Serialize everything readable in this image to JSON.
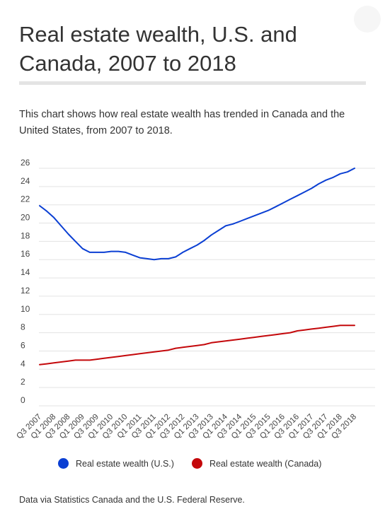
{
  "header": {
    "title": "Real estate wealth, U.S. and Canada, 2007 to 2018",
    "description": "This chart shows how real estate wealth has trended in Canada and the United States, from 2007 to 2018."
  },
  "footer": {
    "source": "Data via Statistics Canada and the U.S. Federal Reserve."
  },
  "chart_data": {
    "type": "line",
    "title": "",
    "xlabel": "",
    "ylabel": "",
    "ylim": [
      0,
      26
    ],
    "yticks": [
      0,
      2,
      4,
      6,
      8,
      10,
      12,
      14,
      16,
      18,
      20,
      22,
      24,
      26
    ],
    "grid": true,
    "legend_position": "bottom",
    "x": [
      "Q3 2007",
      "Q4 2007",
      "Q1 2008",
      "Q2 2008",
      "Q3 2008",
      "Q4 2008",
      "Q1 2009",
      "Q2 2009",
      "Q3 2009",
      "Q4 2009",
      "Q1 2010",
      "Q2 2010",
      "Q3 2010",
      "Q4 2010",
      "Q1 2011",
      "Q2 2011",
      "Q3 2011",
      "Q4 2011",
      "Q1 2012",
      "Q2 2012",
      "Q3 2012",
      "Q4 2012",
      "Q1 2013",
      "Q2 2013",
      "Q3 2013",
      "Q4 2013",
      "Q1 2014",
      "Q2 2014",
      "Q3 2014",
      "Q4 2014",
      "Q1 2015",
      "Q2 2015",
      "Q3 2015",
      "Q4 2015",
      "Q1 2016",
      "Q2 2016",
      "Q3 2016",
      "Q4 2016",
      "Q1 2017",
      "Q2 2017",
      "Q3 2017",
      "Q4 2017",
      "Q1 2018",
      "Q2 2018",
      "Q3 2018"
    ],
    "tick_labels": [
      "Q3 2007",
      "Q1 2008",
      "Q3 2008",
      "Q1 2009",
      "Q3 2009",
      "Q1 2010",
      "Q3 2010",
      "Q1 2011",
      "Q3 2011",
      "Q1 2012",
      "Q3 2012",
      "Q1 2013",
      "Q3 2013",
      "Q1 2014",
      "Q3 2014",
      "Q1 2015",
      "Q3 2015",
      "Q1 2016",
      "Q3 2016",
      "Q1 2017",
      "Q3 2017",
      "Q1 2018",
      "Q3 2018"
    ],
    "series": [
      {
        "name": "Real estate wealth (U.S.)",
        "color": "#0b3fd3",
        "values": [
          21.9,
          21.3,
          20.6,
          19.7,
          18.8,
          18.0,
          17.2,
          16.8,
          16.8,
          16.8,
          16.9,
          16.9,
          16.8,
          16.5,
          16.2,
          16.1,
          16.0,
          16.1,
          16.1,
          16.3,
          16.8,
          17.2,
          17.6,
          18.1,
          18.7,
          19.2,
          19.7,
          19.9,
          20.2,
          20.5,
          20.8,
          21.1,
          21.4,
          21.8,
          22.2,
          22.6,
          23.0,
          23.4,
          23.8,
          24.3,
          24.7,
          25.0,
          25.4,
          25.6,
          26.0
        ]
      },
      {
        "name": "Real estate wealth (Canada)",
        "color": "#c4080b",
        "values": [
          4.5,
          4.6,
          4.7,
          4.8,
          4.9,
          5.0,
          5.0,
          5.0,
          5.1,
          5.2,
          5.3,
          5.4,
          5.5,
          5.6,
          5.7,
          5.8,
          5.9,
          6.0,
          6.1,
          6.3,
          6.4,
          6.5,
          6.6,
          6.7,
          6.9,
          7.0,
          7.1,
          7.2,
          7.3,
          7.4,
          7.5,
          7.6,
          7.7,
          7.8,
          7.9,
          8.0,
          8.2,
          8.3,
          8.4,
          8.5,
          8.6,
          8.7,
          8.8,
          8.8,
          8.8
        ]
      }
    ]
  }
}
